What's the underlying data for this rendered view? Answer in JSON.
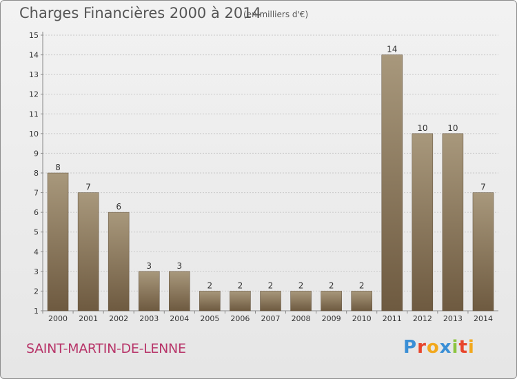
{
  "header": {
    "title": "Charges Financières 2000 à 2014",
    "subtitle": "(en milliers d'€)"
  },
  "footer": {
    "commune": "SAINT-MARTIN-DE-LENNE",
    "brand_letters": [
      {
        "ch": "P",
        "color": "#3a8fd6"
      },
      {
        "ch": "r",
        "color": "#e8452c"
      },
      {
        "ch": "o",
        "color": "#f2a81d"
      },
      {
        "ch": "x",
        "color": "#3a8fd6"
      },
      {
        "ch": "i",
        "color": "#8cc43f"
      },
      {
        "ch": "t",
        "color": "#e8452c"
      },
      {
        "ch": "i",
        "color": "#f2a81d"
      }
    ]
  },
  "colors": {
    "bar_top": "#a8987c",
    "bar_bottom": "#6e5a40",
    "grid": "#c8c8c8"
  },
  "chart_data": {
    "type": "bar",
    "title": "Charges Financières 2000 à 2014",
    "subtitle": "(en milliers d'€)",
    "categories": [
      "2000",
      "2001",
      "2002",
      "2003",
      "2004",
      "2005",
      "2006",
      "2007",
      "2008",
      "2009",
      "2010",
      "2011",
      "2012",
      "2013",
      "2014"
    ],
    "values": [
      8,
      7,
      6,
      3,
      3,
      2,
      2,
      2,
      2,
      2,
      2,
      14,
      10,
      10,
      7
    ],
    "ylim": [
      1,
      15
    ],
    "yticks": [
      1,
      2,
      3,
      4,
      5,
      6,
      7,
      8,
      9,
      10,
      11,
      12,
      13,
      14,
      15
    ],
    "grid": true
  }
}
